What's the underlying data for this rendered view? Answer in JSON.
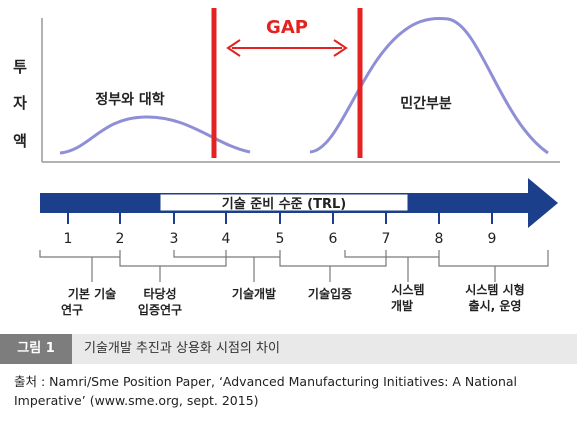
{
  "diagram": {
    "y_axis_label": [
      "투",
      "자",
      "액"
    ],
    "left_curve_label": "정부와 대학",
    "right_curve_label": "민간부분",
    "gap_label": "GAP",
    "arrow_label": "기술 준비 수준 (TRL)",
    "trl_levels": [
      "1",
      "2",
      "3",
      "4",
      "5",
      "6",
      "7",
      "8",
      "9"
    ],
    "stages": [
      [
        "기본 기술",
        "연구"
      ],
      [
        "타당성",
        "입증연구"
      ],
      [
        "기술개발"
      ],
      [
        "기술입증"
      ],
      [
        "시스템",
        "개발"
      ],
      [
        "시스템 시형",
        "출시, 운영"
      ]
    ],
    "colors": {
      "arrow": "#1c3f8c",
      "gap": "#e32322",
      "curve": "#8f8fd6",
      "axis": "#999999",
      "bracket": "#7a7a7a"
    }
  },
  "caption": {
    "label": "그림 1",
    "text": "기술개발 추진과 상용화 시점의 차이"
  },
  "source": {
    "prefix": "출처 :",
    "text": "Namri/Sme Position Paper, ‘Advanced Manufacturing Initiatives: A National Imperative’ (www.sme.org, sept. 2015)"
  }
}
